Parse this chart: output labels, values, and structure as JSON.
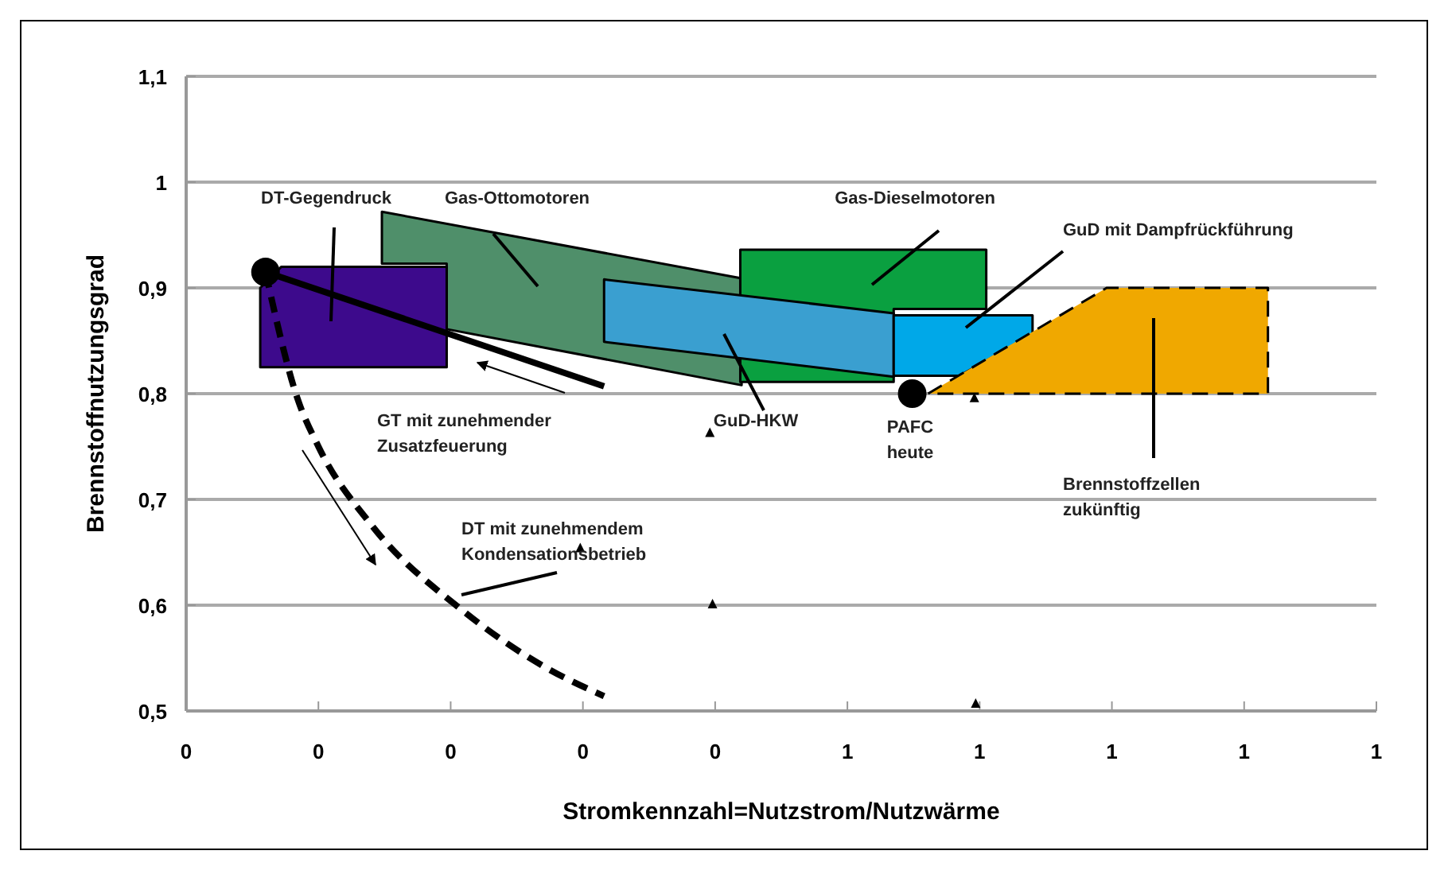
{
  "chart_data": {
    "type": "area",
    "xlabel": "Stromkennzahl=Nutzstrom/Nutzwärme",
    "ylabel": "Brennstoffnutzungsgrad",
    "xlim": [
      0,
      0.9
    ],
    "xticks": [
      0,
      {
        "value": 0.1,
        "label": "0"
      },
      {
        "value": 0.2,
        "label": "0"
      },
      {
        "value": 0.3,
        "label": "0"
      },
      {
        "value": 0.4,
        "label": "0"
      },
      {
        "value": 0.5,
        "label": "1"
      },
      {
        "value": 0.6,
        "label": "1"
      },
      {
        "value": 0.7,
        "label": "1"
      },
      {
        "value": 0.8,
        "label": "1"
      },
      {
        "value": 0.9,
        "label": "1"
      }
    ],
    "ylim": [
      0.5,
      1.1
    ],
    "yticks": [
      {
        "value": 0.5,
        "label": "0,5"
      },
      {
        "value": 0.6,
        "label": "0,6"
      },
      {
        "value": 0.7,
        "label": "0,7"
      },
      {
        "value": 0.8,
        "label": "0,8"
      },
      {
        "value": 0.9,
        "label": "0,9"
      },
      1,
      {
        "value": 1.1,
        "label": "1,1"
      }
    ],
    "grid": "y",
    "series": [
      {
        "color": "#4f8f6a",
        "x": [
          0.148,
          0.42,
          0.42,
          0.197,
          0.197,
          0.148
        ],
        "values": [
          0.972,
          0.909,
          0.808,
          0.861,
          0.923,
          0.923
        ]
      },
      {
        "color": "#3d0a8c",
        "x": [
          0.072,
          0.197,
          0.197,
          0.056,
          0.056
        ],
        "values": [
          0.92,
          0.92,
          0.825,
          0.825,
          0.9
        ]
      },
      {
        "color": "#0aa040",
        "x": [
          0.419,
          0.605,
          0.605,
          0.535,
          0.535,
          0.419
        ],
        "values": [
          0.936,
          0.936,
          0.88,
          0.88,
          0.811,
          0.811
        ]
      },
      {
        "color": "#3a9fd0",
        "x": [
          0.316,
          0.535,
          0.535,
          0.316
        ],
        "values": [
          0.908,
          0.876,
          0.816,
          0.849
        ]
      },
      {
        "color": "#00a8e8",
        "x": [
          0.535,
          0.64,
          0.64,
          0.585,
          0.535
        ],
        "values": [
          0.874,
          0.874,
          0.856,
          0.817,
          0.817
        ]
      },
      {
        "color": "#f0a800",
        "line_style": "dashed",
        "x": [
          0.561,
          0.696,
          0.818,
          0.818
        ],
        "values": [
          0.8,
          0.9,
          0.9,
          0.8
        ]
      },
      {
        "type": "line",
        "color": "#000000",
        "line_style": "solid",
        "x": [
          0.06,
          0.316
        ],
        "values": [
          0.915,
          0.807
        ]
      },
      {
        "type": "line",
        "color": "#000000",
        "line_style": "dashed",
        "x": [
          0.06,
          0.084,
          0.1,
          0.14,
          0.208,
          0.272,
          0.316
        ],
        "values": [
          0.915,
          0.796,
          0.75,
          0.676,
          0.596,
          0.541,
          0.514
        ]
      },
      {
        "type": "scatter",
        "color": "#000000",
        "marker": "circle",
        "x": [
          0.06,
          0.549
        ],
        "values": [
          0.915,
          0.8
        ]
      },
      {
        "type": "scatter",
        "color": "#000000",
        "marker": "triangle",
        "x": [
          0.396,
          0.398,
          0.597,
          0.596,
          0.298
        ],
        "values": [
          0.762,
          0.6,
          0.506,
          0.795,
          0.653
        ]
      }
    ],
    "annotations": [
      "DT-Gegendruck",
      "Gas-Ottomotoren",
      "Gas-Dieselmotoren",
      "GuD mit Dampfrückführung",
      "GT mit zunehmender\nZusatzfeuerung",
      "DT mit zunehmendem\nKondensationsbetrieb",
      "GuD-HKW",
      "PAFC\nheute",
      "Brennstoffzellen\nzukünftig"
    ]
  }
}
